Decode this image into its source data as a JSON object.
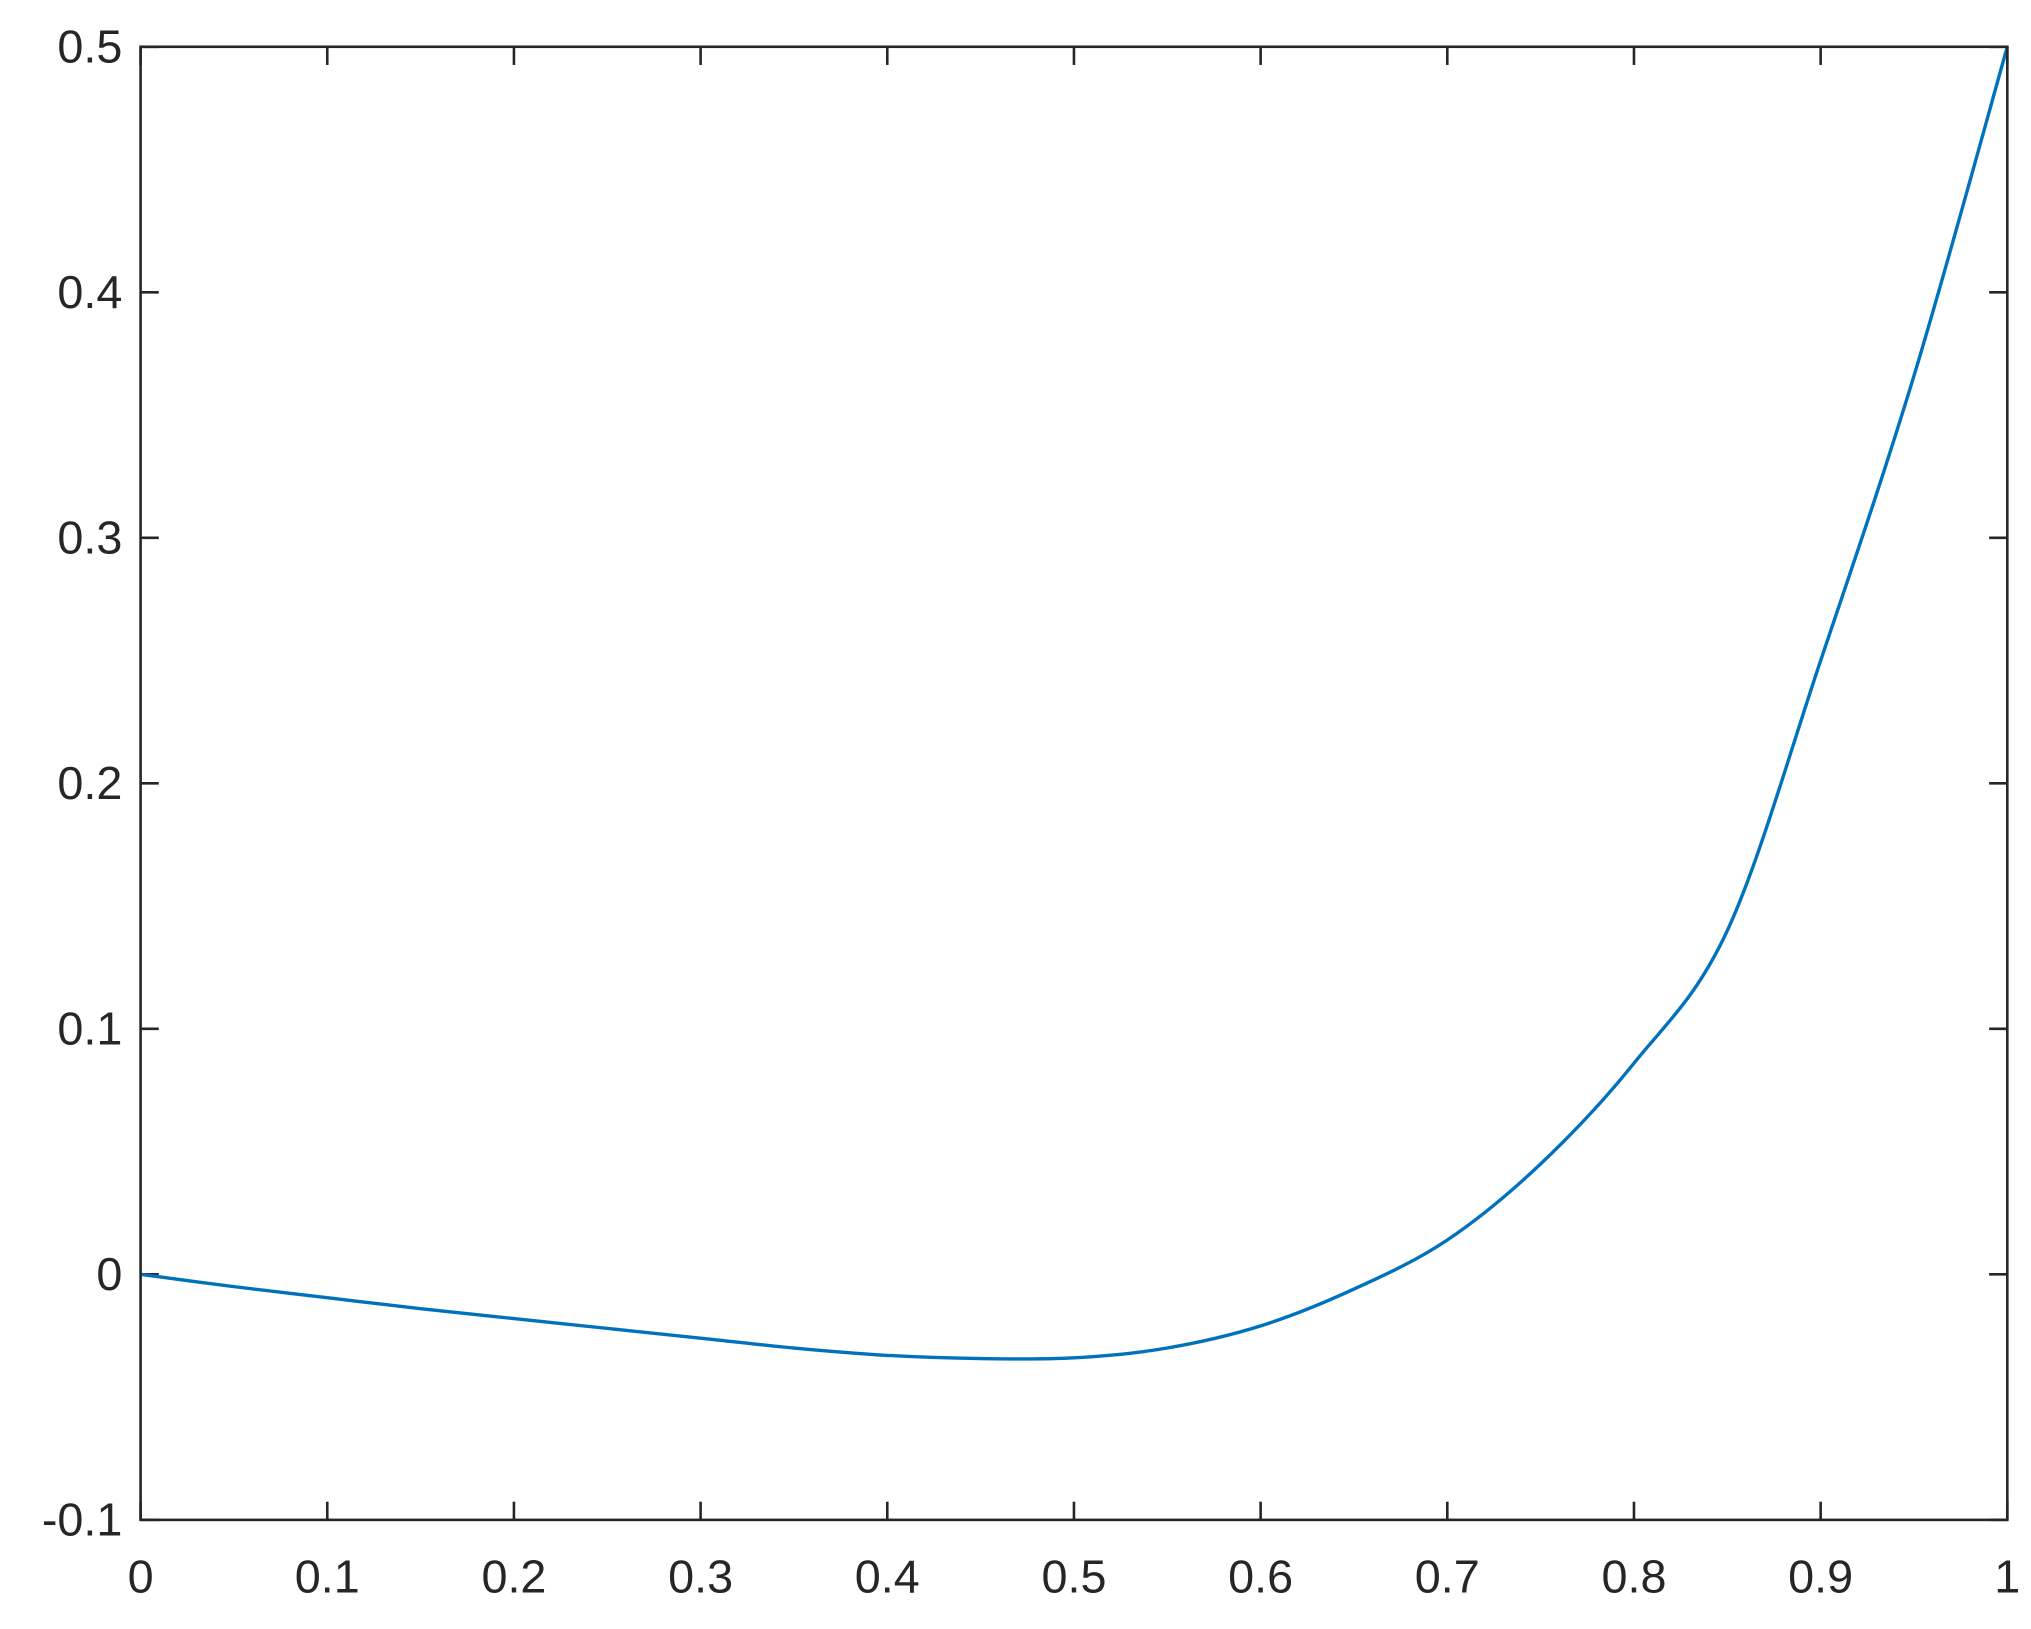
{
  "chart_data": {
    "type": "line",
    "title": "",
    "xlabel": "",
    "ylabel": "",
    "xlim": [
      0,
      1
    ],
    "ylim": [
      -0.1,
      0.5
    ],
    "grid": false,
    "box": true,
    "line_color": "#0072BD",
    "axis_color": "#262626",
    "xticks": [
      "0",
      "0.1",
      "0.2",
      "0.3",
      "0.4",
      "0.5",
      "0.6",
      "0.7",
      "0.8",
      "0.9",
      "1"
    ],
    "yticks": [
      "-0.1",
      "0",
      "0.1",
      "0.2",
      "0.3",
      "0.4",
      "0.5"
    ],
    "series": [
      {
        "x": [
          0,
          0.05,
          0.1,
          0.15,
          0.2,
          0.25,
          0.3,
          0.35,
          0.4,
          0.45,
          0.5,
          0.55,
          0.6,
          0.65,
          0.7,
          0.75,
          0.8,
          0.85,
          0.9,
          0.95,
          1
        ],
        "y": [
          0,
          -0.005,
          -0.0095,
          -0.014,
          -0.018,
          -0.022,
          -0.026,
          -0.03,
          -0.033,
          -0.0343,
          -0.034,
          -0.03,
          -0.021,
          -0.006,
          0.014,
          0.045,
          0.086,
          0.14,
          0.25,
          0.366,
          0.5
        ]
      }
    ]
  }
}
